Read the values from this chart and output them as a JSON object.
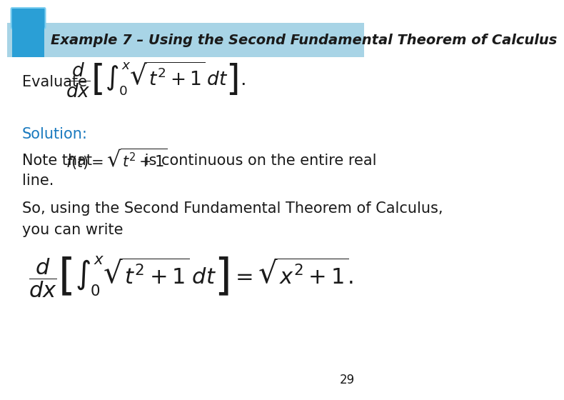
{
  "title": "Example 7 – Using the Second Fundamental Theorem of Calculus",
  "title_color": "#1a1a1a",
  "title_bg_color": "#a8d4e6",
  "title_strip_color": "#2a9fd6",
  "tab_color": "#2a9fd6",
  "bg_color": "#ffffff",
  "solution_color": "#1a7abf",
  "body_color": "#1a1a1a",
  "evaluate_label": "Evaluate",
  "evaluate_formula": "$\\dfrac{d}{dx}\\left[\\int_0^x \\sqrt{t^2+1}\\, dt\\right].$",
  "solution_text": "Solution:",
  "note_text1": "Note that ",
  "note_formula": "$f(t) = \\sqrt{t^2+1}$",
  "note_text2": " is continuous on the entire real",
  "note_text3": "line.",
  "so_text": "So, using the Second Fundamental Theorem of Calculus,",
  "you_text": "you can write",
  "big_formula": "$\\dfrac{d}{dx}\\left[\\int_0^x \\sqrt{t^2+1}\\, dt\\right] = \\sqrt{x^2+1}.$",
  "page_number": "29",
  "fontsize_title": 14,
  "fontsize_body": 14,
  "fontsize_formula": 17
}
